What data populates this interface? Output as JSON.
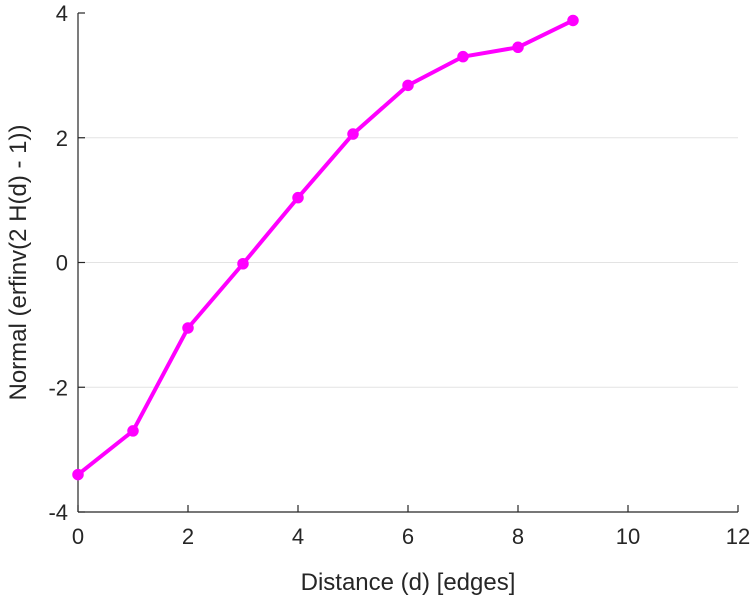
{
  "chart_data": {
    "type": "line",
    "title": "",
    "xlabel": "Distance (d) [edges]",
    "ylabel": "Normal (erfinv(2 H(d) - 1))",
    "xlim": [
      0,
      12
    ],
    "ylim": [
      -4,
      4
    ],
    "xticks": [
      0,
      2,
      4,
      6,
      8,
      10,
      12
    ],
    "yticks": [
      -4,
      -2,
      0,
      2,
      4
    ],
    "xtick_labels": [
      "0",
      "2",
      "4",
      "6",
      "8",
      "10",
      "12"
    ],
    "ytick_labels": [
      "-4",
      "-2",
      "0",
      "2",
      "4"
    ],
    "grid": "horizontal",
    "series": [
      {
        "color": "#ff00ff",
        "marker": "circle",
        "x": [
          0,
          1,
          2,
          3,
          4,
          5,
          6,
          7,
          8,
          9
        ],
        "y": [
          -3.4,
          -2.7,
          -1.05,
          -0.02,
          1.04,
          2.06,
          2.84,
          3.3,
          3.45,
          3.88
        ]
      }
    ]
  }
}
